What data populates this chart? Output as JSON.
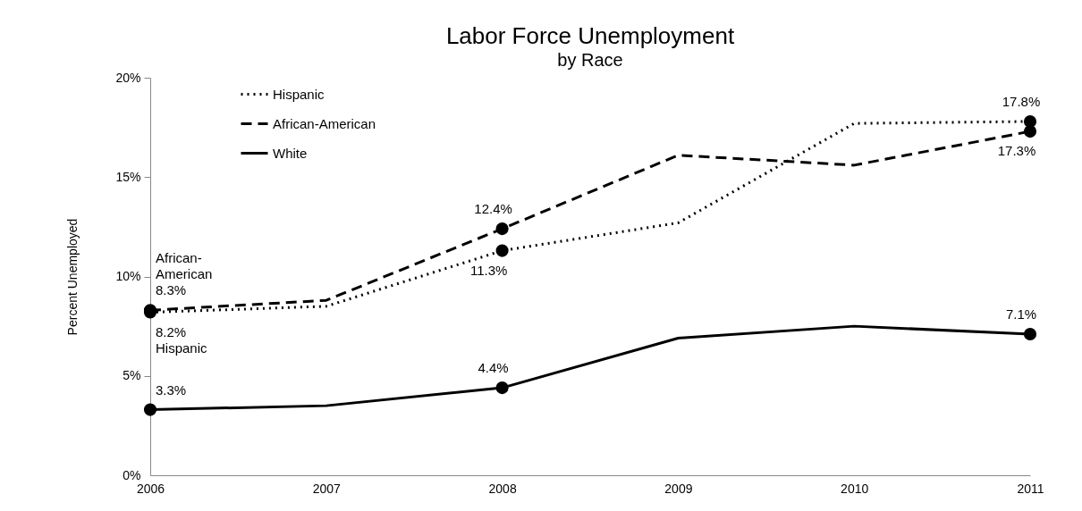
{
  "chart_data": {
    "type": "line",
    "title": "Labor Force Unemployment",
    "subtitle": "by Race",
    "ylabel": "Percent Unemployed",
    "x": [
      2006,
      2007,
      2008,
      2009,
      2010,
      2011
    ],
    "xlim": [
      2006,
      2011
    ],
    "xticks": [
      2006,
      2007,
      2008,
      2009,
      2010,
      2011
    ],
    "ylim": [
      0,
      20
    ],
    "yticks": [
      {
        "value": 0,
        "label": "0%"
      },
      {
        "value": 5,
        "label": "5%"
      },
      {
        "value": 10,
        "label": "10%"
      },
      {
        "value": 15,
        "label": "15%"
      },
      {
        "value": 20,
        "label": "20%"
      }
    ],
    "grid": false,
    "legend": "top left",
    "series": [
      {
        "name": "Hispanic",
        "color": "#000000",
        "line_style": "dotted",
        "values": [
          8.2,
          8.5,
          11.3,
          12.7,
          17.7,
          17.8
        ]
      },
      {
        "name": "African-American",
        "color": "#000000",
        "line_style": "dashed",
        "values": [
          8.3,
          8.8,
          12.4,
          16.1,
          15.6,
          17.3
        ]
      },
      {
        "name": "White",
        "color": "#000000",
        "line_style": "solid",
        "values": [
          3.3,
          3.5,
          4.4,
          6.9,
          7.5,
          7.1
        ]
      },
      {
        "type": "scatter",
        "marker": "circle",
        "color": "#000000",
        "x": [
          2006,
          2008,
          2011
        ],
        "values": [
          8.2,
          11.3,
          17.8
        ],
        "value_labels": [
          "8.2%\nHispanic",
          "11.3%",
          "17.8%"
        ]
      },
      {
        "type": "scatter",
        "marker": "circle",
        "color": "#000000",
        "x": [
          2006,
          2008,
          2011
        ],
        "values": [
          8.3,
          12.4,
          17.3
        ],
        "value_labels": [
          "African-\nAmerican\n8.3%",
          "12.4%",
          "17.3%"
        ]
      },
      {
        "type": "scatter",
        "marker": "circle",
        "color": "#000000",
        "x": [
          2006,
          2008,
          2011
        ],
        "values": [
          3.3,
          4.4,
          7.1
        ],
        "value_labels": [
          "3.3%",
          "4.4%",
          "7.1%"
        ]
      }
    ]
  }
}
